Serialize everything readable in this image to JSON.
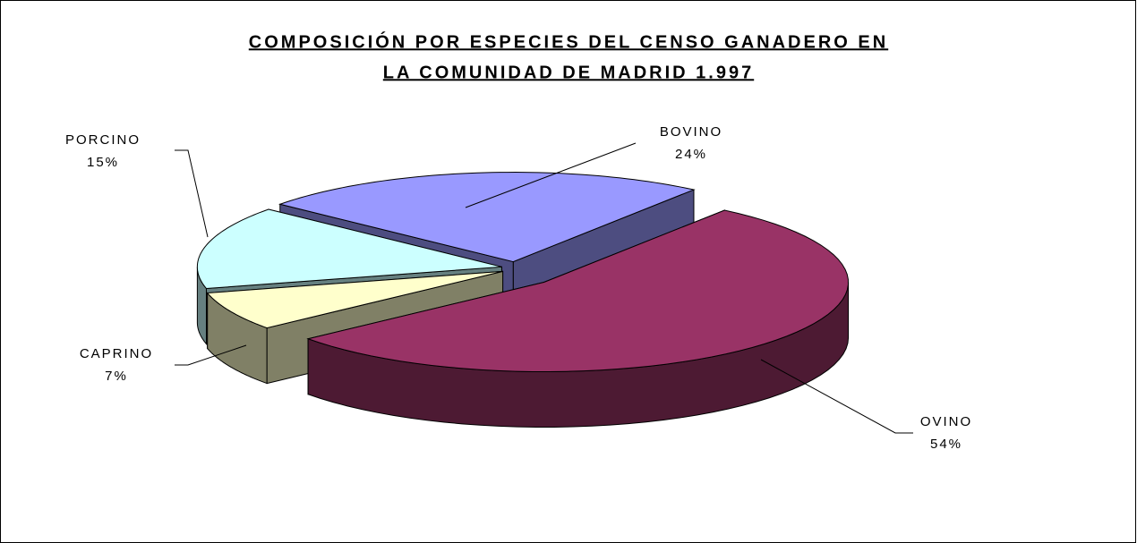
{
  "chart_data": {
    "type": "pie3d",
    "title": [
      "COMPOSICIÓN POR ESPECIES DEL CENSO GANADERO EN",
      "LA COMUNIDAD DE MADRID 1.997"
    ],
    "categories": [
      "BOVINO",
      "OVINO",
      "CAPRINO",
      "PORCINO"
    ],
    "values": [
      24,
      54,
      7,
      15
    ],
    "value_labels": [
      "24%",
      "54%",
      "7%",
      "15%"
    ],
    "colors": [
      "#9999ff",
      "#993366",
      "#ffffcc",
      "#ccffff"
    ]
  }
}
